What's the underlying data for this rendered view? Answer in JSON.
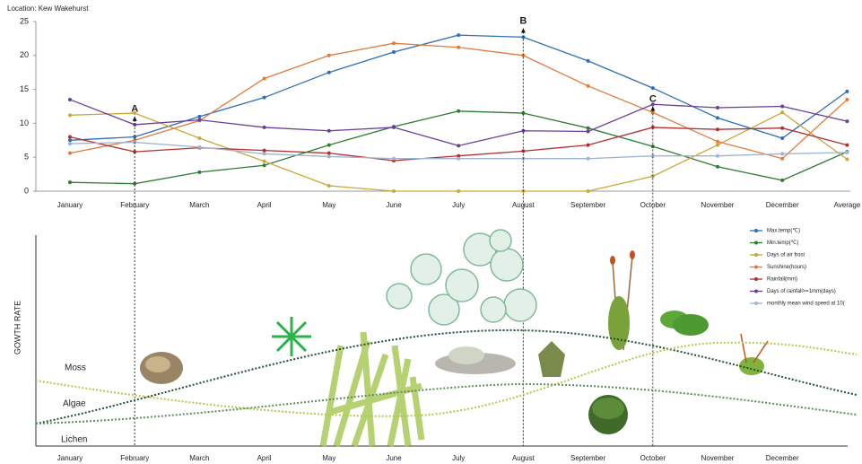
{
  "header": {
    "location": "Location: Kew Wakehurst"
  },
  "chart_data": {
    "type": "line",
    "categories": [
      "January",
      "February",
      "March",
      "April",
      "May",
      "June",
      "July",
      "August",
      "September",
      "October",
      "November",
      "December",
      "Average"
    ],
    "ylim": [
      0,
      25
    ],
    "yticks": [
      0,
      5,
      10,
      15,
      20,
      25
    ],
    "series": [
      {
        "name": "Max.temp(℃)",
        "color": "#2f6db5",
        "values": [
          7.5,
          8,
          11,
          13.8,
          17.5,
          20.5,
          23,
          22.7,
          19.2,
          15.2,
          10.8,
          7.8,
          14.7
        ]
      },
      {
        "name": "Min.temp(℃)",
        "color": "#2e7d32",
        "values": [
          1.3,
          1.1,
          2.8,
          3.8,
          6.8,
          9.5,
          11.8,
          11.5,
          9.3,
          6.6,
          3.6,
          1.6,
          5.8
        ]
      },
      {
        "name": "Days of air frost",
        "color": "#c9a83a",
        "values": [
          11.2,
          11.5,
          7.8,
          4.4,
          0.8,
          0,
          0,
          0,
          0,
          2.2,
          6.8,
          11.6,
          4.7
        ]
      },
      {
        "name": "Sunshine(hours)",
        "color": "#e07b3c",
        "values": [
          5.6,
          7.5,
          10.4,
          16.6,
          20,
          21.8,
          21.2,
          20,
          15.5,
          11.6,
          7.3,
          4.8,
          13.5
        ]
      },
      {
        "name": "Rainfall(mm)",
        "color": "#b03030",
        "values": [
          8,
          5.8,
          6.4,
          6,
          5.6,
          4.5,
          5.2,
          5.9,
          6.8,
          9.4,
          9.1,
          9.3,
          6.8
        ]
      },
      {
        "name": "Days of rainfall>=1mm(days)",
        "color": "#6a3d9a",
        "values": [
          13.5,
          9.8,
          10.5,
          9.4,
          8.9,
          9.4,
          6.7,
          8.9,
          8.8,
          12.8,
          12.3,
          12.5,
          10.3
        ]
      },
      {
        "name": "monthly mean wind speed at 10(",
        "color": "#9fb4d0",
        "values": [
          7,
          7.2,
          6.5,
          5.5,
          5.1,
          4.8,
          4.8,
          4.8,
          4.8,
          5.2,
          5.2,
          5.5,
          5.7
        ]
      }
    ],
    "annotations": [
      {
        "text": "A",
        "category": "February",
        "y": 11
      },
      {
        "text": "B",
        "category": "August",
        "y": 24
      },
      {
        "text": "C",
        "category": "October",
        "y": 12.5
      }
    ]
  },
  "growth_chart": {
    "ylabel": "GOWTH RATE",
    "curve_labels": [
      "Moss",
      "Algae",
      "Lichen"
    ],
    "months": [
      "January",
      "February",
      "March",
      "April",
      "May",
      "June",
      "July",
      "August",
      "September",
      "October",
      "November",
      "December"
    ]
  }
}
